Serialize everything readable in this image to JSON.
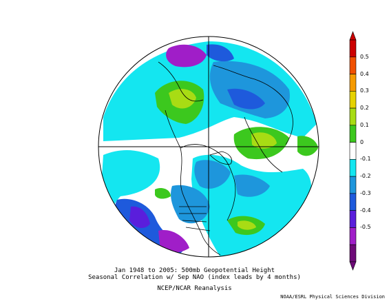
{
  "caption": {
    "line1": "Jan 1948 to 2005: 500mb Geopotential Height",
    "line2": "Seasonal Correlation w/ Sep NAO (index leads by 4 months)",
    "line3": "NCEP/NCAR Reanalysis"
  },
  "credit": "NOAA/ESRL Physical Sciences Division",
  "colorbar": {
    "labels": [
      "0.5",
      "0.4",
      "0.3",
      "0.2",
      "0.1",
      "0",
      "-0.1",
      "-0.2",
      "-0.3",
      "-0.4",
      "-0.5"
    ],
    "colors": [
      "#cc0000",
      "#f05000",
      "#f59a00",
      "#e6d200",
      "#a8dc14",
      "#3cc81e",
      "#ffffff",
      "#14e6f0",
      "#1e96dc",
      "#1e5adc",
      "#5a1edc",
      "#a01ec8",
      "#6e0a78"
    ]
  },
  "map": {
    "projection": "north-polar-stereographic",
    "variable": "500mb geopotential height correlation"
  }
}
